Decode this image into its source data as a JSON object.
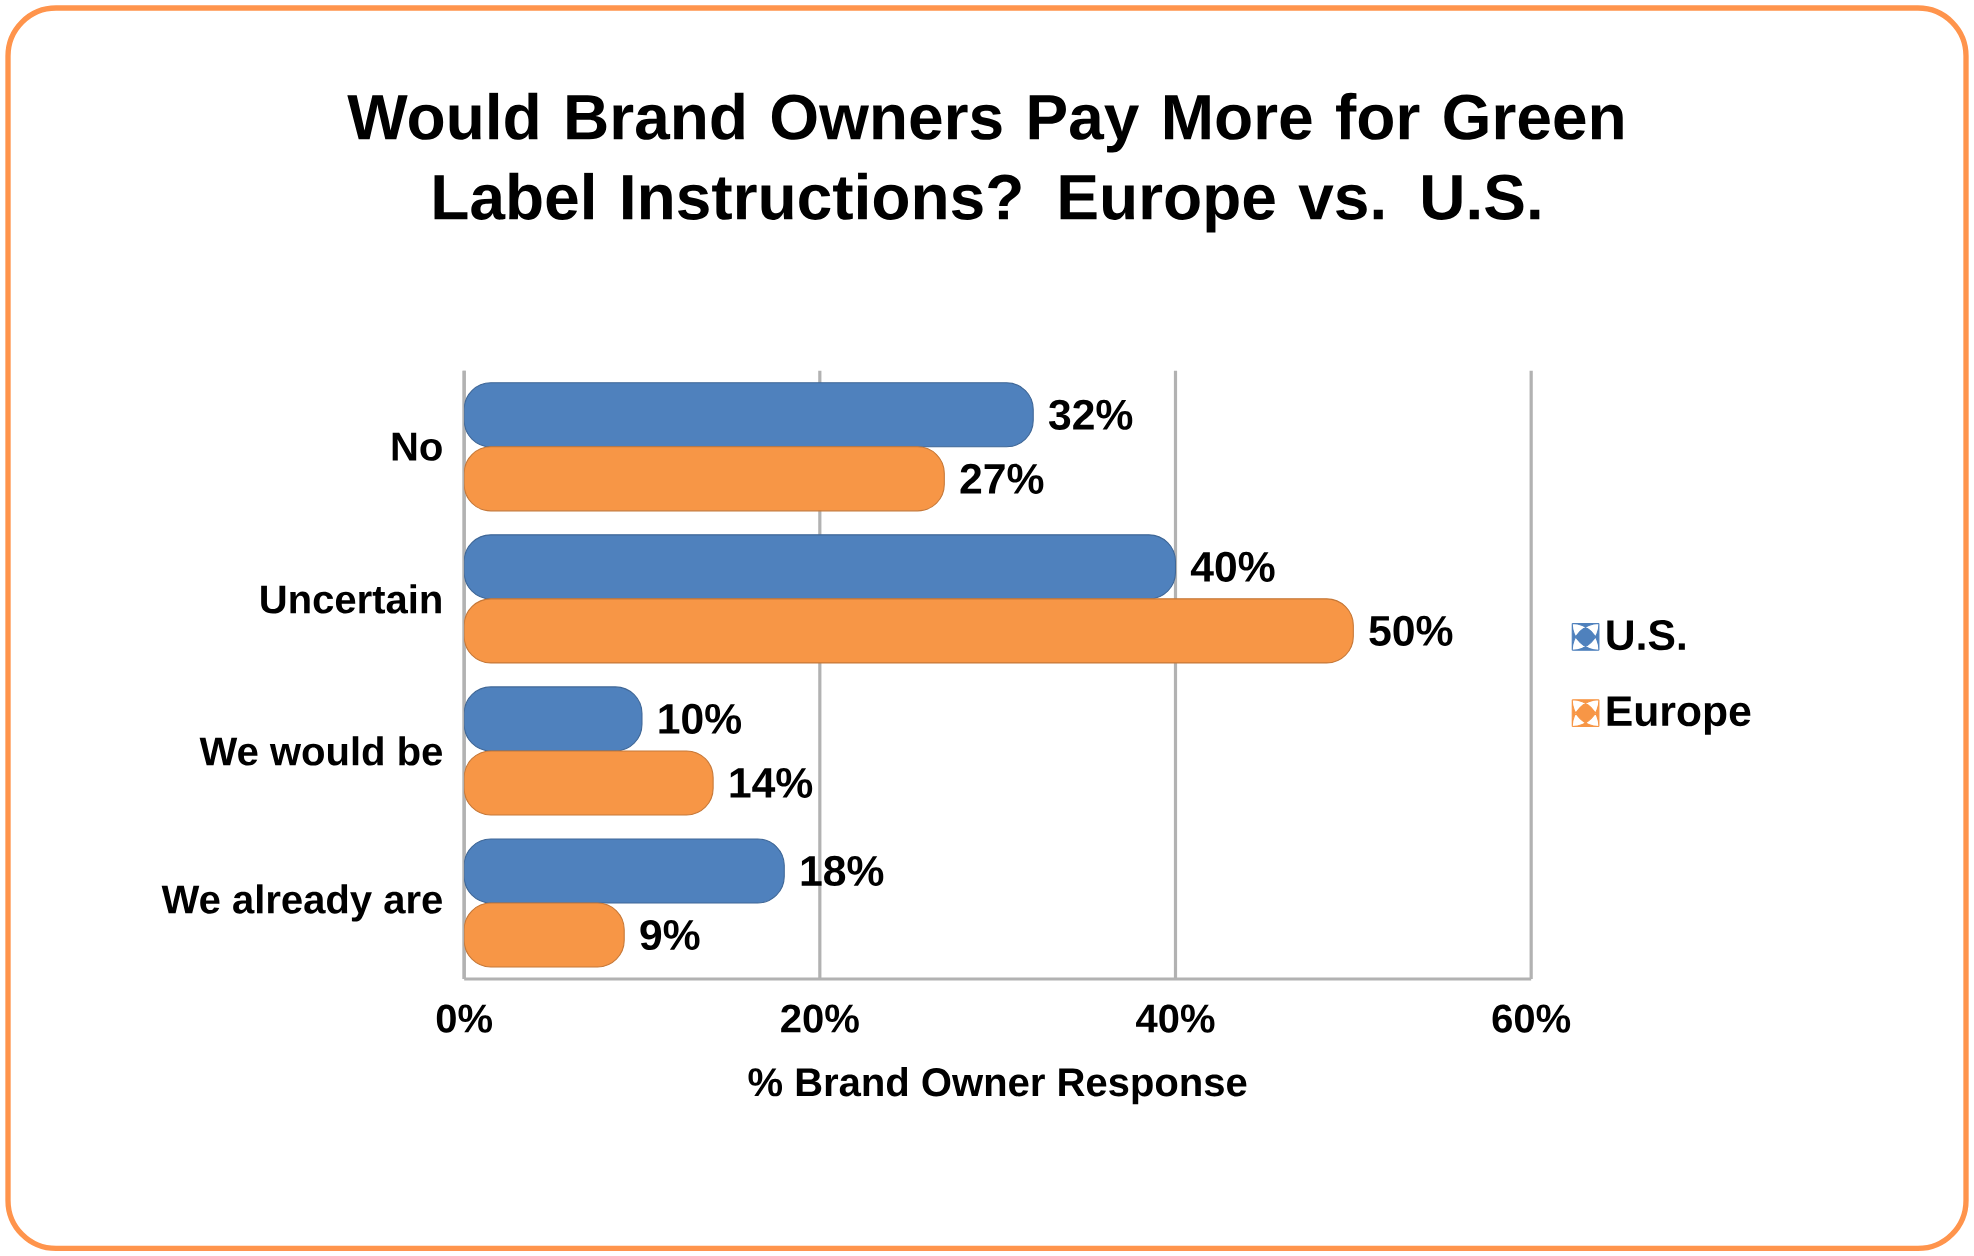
{
  "chart_data": {
    "type": "bar",
    "orientation": "horizontal",
    "title": "Would Brand Owners Pay More for Green Label Instructions? Europe vs. U.S.",
    "xlabel": "% Brand Owner Response",
    "categories": [
      "No",
      "Uncertain",
      "We would be",
      "We already are"
    ],
    "series": [
      {
        "name": "U.S.",
        "color": "#4f81bd",
        "values": [
          32,
          40,
          10,
          18
        ],
        "value_labels": [
          "32%",
          "40%",
          "10%",
          "18%"
        ]
      },
      {
        "name": "Europe",
        "color": "#f79646",
        "values": [
          27,
          50,
          14,
          9
        ],
        "value_labels": [
          "27%",
          "50%",
          "14%",
          "9%"
        ]
      }
    ],
    "xlim": [
      0,
      60
    ],
    "xticks": [
      {
        "value": 0,
        "label": "0%"
      },
      {
        "value": 20,
        "label": "20%"
      },
      {
        "value": 40,
        "label": "40%"
      },
      {
        "value": 60,
        "label": "60%"
      }
    ],
    "grid": "x",
    "legend": "right"
  }
}
